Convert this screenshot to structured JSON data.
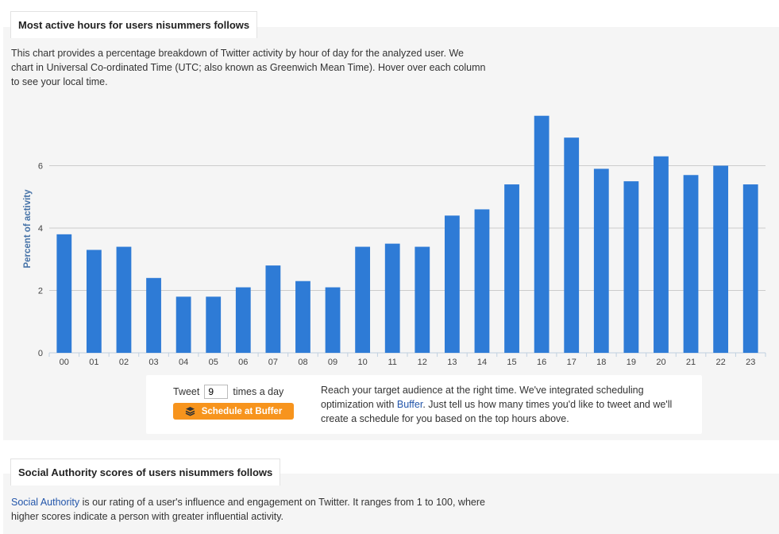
{
  "section1": {
    "title": "Most active hours for users nisummers follows",
    "description": "This chart provides a percentage breakdown of Twitter activity by hour of day for the analyzed user. We chart in Universal Co-ordinated Time (UTC; also known as Greenwich Mean Time). Hover over each column to see your local time."
  },
  "chart_data": {
    "type": "bar",
    "title": "",
    "xlabel": "",
    "ylabel": "Percent of activity",
    "categories": [
      "00",
      "01",
      "02",
      "03",
      "04",
      "05",
      "06",
      "07",
      "08",
      "09",
      "10",
      "11",
      "12",
      "13",
      "14",
      "15",
      "16",
      "17",
      "18",
      "19",
      "20",
      "21",
      "22",
      "23"
    ],
    "values": [
      3.8,
      3.3,
      3.4,
      2.4,
      1.8,
      1.8,
      2.1,
      2.8,
      2.3,
      2.1,
      3.4,
      3.5,
      3.4,
      4.4,
      4.6,
      5.4,
      7.6,
      6.9,
      5.9,
      5.5,
      6.3,
      5.7,
      6.0,
      5.4
    ],
    "yticks": [
      0,
      2,
      4,
      6
    ],
    "ylim": [
      0,
      8
    ],
    "grid": true,
    "bar_color": "#2e7bd6"
  },
  "cta": {
    "tweet_label": "Tweet",
    "tweet_value": "9",
    "times_label": "times a day",
    "button_label": "Schedule at Buffer",
    "text_before": "Reach your target audience at the right time. We've integrated scheduling optimization with ",
    "link_text": "Buffer",
    "text_after": ". Just tell us how many times you'd like to tweet and we'll create a schedule for you based on the top hours above."
  },
  "section2": {
    "title": "Social Authority scores of users nisummers follows",
    "link_text": "Social Authority",
    "description": " is our rating of a user's influence and engagement on Twitter. It ranges from 1 to 100, where higher scores indicate a person with greater influential activity."
  },
  "colors": {
    "panel_bg": "#f5f5f5",
    "bar": "#2e7bd6",
    "link": "#2255aa",
    "button": "#f7941d",
    "axis_label": "#4572a7"
  }
}
